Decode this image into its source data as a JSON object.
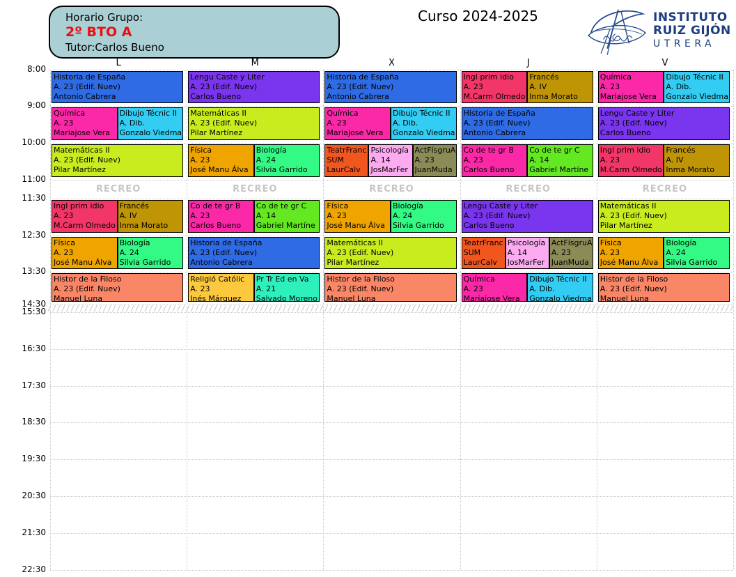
{
  "header": {
    "group_label": "Horario Grupo:",
    "group_name": "2º BTO A",
    "tutor": "Tutor:Carlos Bueno",
    "course": "Curso 2024-2025",
    "school": {
      "line1": "INSTITUTO",
      "line2": "RUIZ GIJÓN",
      "line3": "UTRERA"
    }
  },
  "colors": {
    "blue": "#2f6be4",
    "purple": "#7a35ee",
    "magenta": "#fb28a8",
    "cyan": "#33ccf2",
    "lime": "#c9ec1f",
    "crimson": "#f23768",
    "dark_gold": "#bf9405",
    "orange": "#efa400",
    "spring_green": "#33fa85",
    "orange_red": "#f2561f",
    "light_pink": "#fcabf0",
    "olive": "#8b8b58",
    "bright_green": "#63e822",
    "salmon": "#f98767",
    "amber": "#fcc93e",
    "turquoise": "#2ef0bd",
    "header_box_fill": "#aacfd4",
    "group_name_red": "#e80f0f",
    "logo_navy": "#1d3e7e",
    "recreo_gray": "#c6c6c6"
  },
  "timetable": {
    "recreo_label": "RECREO",
    "times": [
      "8:00",
      "9:00",
      "10:00",
      "11:00",
      "11:30",
      "12:30",
      "13:30",
      "14:30",
      "15:30",
      "16:30",
      "17:30",
      "18:30",
      "19:30",
      "20:30",
      "21:30",
      "22:30"
    ],
    "days": [
      {
        "label": "L",
        "periods": [
          [
            {
              "subject": "Historia de España",
              "room": "A. 23 (Edif. Nuev)",
              "teacher": "Antonio Cabrera",
              "color": "blue"
            }
          ],
          [
            {
              "subject": "Química",
              "room": "A. 23",
              "teacher": "Mariajose Vera",
              "color": "magenta"
            },
            {
              "subject": "Dibujo Técnic II",
              "room": "A. Dib.",
              "teacher": "Gonzalo Viedma",
              "color": "cyan"
            }
          ],
          [
            {
              "subject": "Matemáticas II",
              "room": "A. 23 (Edif. Nuev)",
              "teacher": "Pilar Martínez",
              "color": "lime"
            }
          ],
          [
            {
              "subject": "Ingl prim idio",
              "room": "A. 23",
              "teacher": "M.Carm Olmedo",
              "color": "crimson"
            },
            {
              "subject": "Francés",
              "room": "A. IV",
              "teacher": "Inma Morato",
              "color": "dark_gold"
            }
          ],
          [
            {
              "subject": "Física",
              "room": "A. 23",
              "teacher": "José Manu Álva",
              "color": "orange"
            },
            {
              "subject": "Biología",
              "room": "A. 24",
              "teacher": "Silvia Garrido",
              "color": "spring_green"
            }
          ],
          [
            {
              "subject": "Histor de la Filoso",
              "room": "A. 23 (Edif. Nuev)",
              "teacher": "Manuel Luna",
              "color": "salmon"
            }
          ]
        ]
      },
      {
        "label": "M",
        "periods": [
          [
            {
              "subject": "Lengu Caste y Liter",
              "room": "A. 23 (Edif. Nuev)",
              "teacher": "Carlos Bueno",
              "color": "purple"
            }
          ],
          [
            {
              "subject": "Matemáticas II",
              "room": "A. 23 (Edif. Nuev)",
              "teacher": "Pilar Martínez",
              "color": "lime"
            }
          ],
          [
            {
              "subject": "Física",
              "room": "A. 23",
              "teacher": "José Manu Álva",
              "color": "orange"
            },
            {
              "subject": "Biología",
              "room": "A. 24",
              "teacher": "Silvia Garrido",
              "color": "spring_green"
            }
          ],
          [
            {
              "subject": "Co de te gr B",
              "room": "A. 23",
              "teacher": "Carlos Bueno",
              "color": "magenta"
            },
            {
              "subject": "Co de te gr C",
              "room": "A. 14",
              "teacher": "Gabriel Martíne",
              "color": "bright_green"
            }
          ],
          [
            {
              "subject": "Historia de España",
              "room": "A. 23 (Edif. Nuev)",
              "teacher": "Antonio Cabrera",
              "color": "blue"
            }
          ],
          [
            {
              "subject": "Religió Católic",
              "room": "A. 23",
              "teacher": "Inés Márquez",
              "color": "amber"
            },
            {
              "subject": "Pr Tr Ed en Va",
              "room": "A. 21",
              "teacher": "Salvado Moreno",
              "color": "turquoise"
            }
          ]
        ]
      },
      {
        "label": "X",
        "periods": [
          [
            {
              "subject": "Historia de España",
              "room": "A. 23 (Edif. Nuev)",
              "teacher": "Antonio Cabrera",
              "color": "blue"
            }
          ],
          [
            {
              "subject": "Química",
              "room": "A. 23",
              "teacher": "Mariajose Vera",
              "color": "magenta"
            },
            {
              "subject": "Dibujo Técnic II",
              "room": "A. Dib.",
              "teacher": "Gonzalo Viedma",
              "color": "cyan"
            }
          ],
          [
            {
              "subject": "TeatrFranc",
              "room": "SUM",
              "teacher": "LaurCalv",
              "color": "orange_red"
            },
            {
              "subject": "Psicología",
              "room": "A. 14",
              "teacher": "JosMarFer",
              "color": "light_pink"
            },
            {
              "subject": "ActFísgruA",
              "room": "A. 23",
              "teacher": "JuanMuda",
              "color": "olive"
            }
          ],
          [
            {
              "subject": "Física",
              "room": "A. 23",
              "teacher": "José Manu Álva",
              "color": "orange"
            },
            {
              "subject": "Biología",
              "room": "A. 24",
              "teacher": "Silvia Garrido",
              "color": "spring_green"
            }
          ],
          [
            {
              "subject": "Matemáticas II",
              "room": "A. 23 (Edif. Nuev)",
              "teacher": "Pilar Martínez",
              "color": "lime"
            }
          ],
          [
            {
              "subject": "Histor de la Filoso",
              "room": "A. 23 (Edif. Nuev)",
              "teacher": "Manuel Luna",
              "color": "salmon"
            }
          ]
        ]
      },
      {
        "label": "J",
        "periods": [
          [
            {
              "subject": "Ingl prim idio",
              "room": "A. 23",
              "teacher": "M.Carm Olmedo",
              "color": "crimson"
            },
            {
              "subject": "Francés",
              "room": "A. IV",
              "teacher": "Inma Morato",
              "color": "dark_gold"
            }
          ],
          [
            {
              "subject": "Historia de España",
              "room": "A. 23 (Edif. Nuev)",
              "teacher": "Antonio Cabrera",
              "color": "blue"
            }
          ],
          [
            {
              "subject": "Co de te gr B",
              "room": "A. 23",
              "teacher": "Carlos Bueno",
              "color": "magenta"
            },
            {
              "subject": "Co de te gr C",
              "room": "A. 14",
              "teacher": "Gabriel Martíne",
              "color": "bright_green"
            }
          ],
          [
            {
              "subject": "Lengu Caste y Liter",
              "room": "A. 23 (Edif. Nuev)",
              "teacher": "Carlos Bueno",
              "color": "purple"
            }
          ],
          [
            {
              "subject": "TeatrFranc",
              "room": "SUM",
              "teacher": "LaurCalv",
              "color": "orange_red"
            },
            {
              "subject": "Psicología",
              "room": "A. 14",
              "teacher": "JosMarFer",
              "color": "light_pink"
            },
            {
              "subject": "ActFísgruA",
              "room": "A. 23",
              "teacher": "JuanMuda",
              "color": "olive"
            }
          ],
          [
            {
              "subject": "Química",
              "room": "A. 23",
              "teacher": "Mariajose Vera",
              "color": "magenta"
            },
            {
              "subject": "Dibujo Técnic II",
              "room": "A. Dib.",
              "teacher": "Gonzalo Viedma",
              "color": "cyan"
            }
          ]
        ]
      },
      {
        "label": "V",
        "periods": [
          [
            {
              "subject": "Química",
              "room": "A. 23",
              "teacher": "Mariajose Vera",
              "color": "magenta"
            },
            {
              "subject": "Dibujo Técnic II",
              "room": "A. Dib.",
              "teacher": "Gonzalo Viedma",
              "color": "cyan"
            }
          ],
          [
            {
              "subject": "Lengu Caste y Liter",
              "room": "A. 23 (Edif. Nuev)",
              "teacher": "Carlos Bueno",
              "color": "purple"
            }
          ],
          [
            {
              "subject": "Ingl prim idio",
              "room": "A. 23",
              "teacher": "M.Carm Olmedo",
              "color": "crimson"
            },
            {
              "subject": "Francés",
              "room": "A. IV",
              "teacher": "Inma Morato",
              "color": "dark_gold"
            }
          ],
          [
            {
              "subject": "Matemáticas II",
              "room": "A. 23 (Edif. Nuev)",
              "teacher": "Pilar Martínez",
              "color": "lime"
            }
          ],
          [
            {
              "subject": "Física",
              "room": "A. 23",
              "teacher": "José Manu Álva",
              "color": "orange"
            },
            {
              "subject": "Biología",
              "room": "A. 24",
              "teacher": "Silvia Garrido",
              "color": "spring_green"
            }
          ],
          [
            {
              "subject": "Histor de la Filoso",
              "room": "A. 23 (Edif. Nuev)",
              "teacher": "Manuel Luna",
              "color": "salmon"
            }
          ]
        ]
      }
    ]
  }
}
